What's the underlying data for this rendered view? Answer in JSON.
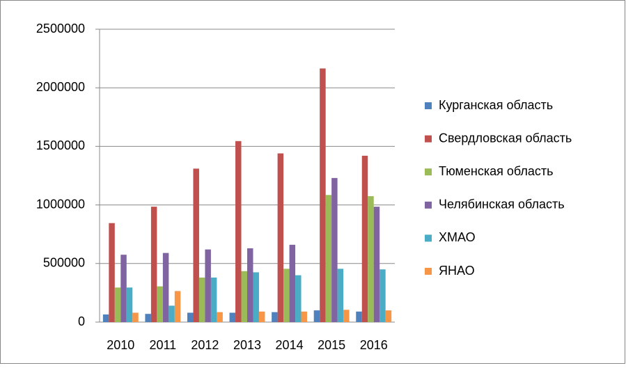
{
  "chart_data": {
    "type": "bar",
    "categories": [
      "2010",
      "2011",
      "2012",
      "2013",
      "2014",
      "2015",
      "2016"
    ],
    "series": [
      {
        "name": "Курганская область",
        "color": "#4f81bd",
        "values": [
          65000,
          70000,
          80000,
          80000,
          85000,
          100000,
          90000
        ]
      },
      {
        "name": "Свердловская область",
        "color": "#c0504d",
        "values": [
          845000,
          985000,
          1310000,
          1545000,
          1440000,
          2165000,
          1420000
        ]
      },
      {
        "name": "Тюменская область",
        "color": "#9bbb59",
        "values": [
          295000,
          305000,
          380000,
          435000,
          455000,
          1085000,
          1075000
        ]
      },
      {
        "name": "Челябинская область",
        "color": "#8064a2",
        "values": [
          575000,
          590000,
          620000,
          630000,
          660000,
          1230000,
          985000
        ]
      },
      {
        "name": "ХМАО",
        "color": "#4bacc6",
        "values": [
          295000,
          140000,
          380000,
          425000,
          400000,
          455000,
          450000
        ]
      },
      {
        "name": "ЯНАО",
        "color": "#f79646",
        "values": [
          80000,
          265000,
          85000,
          90000,
          90000,
          105000,
          100000
        ]
      }
    ],
    "ylim": [
      0,
      2500000
    ],
    "yticks": [
      0,
      500000,
      1000000,
      1500000,
      2000000,
      2500000
    ],
    "grid": true,
    "legend": "right"
  }
}
